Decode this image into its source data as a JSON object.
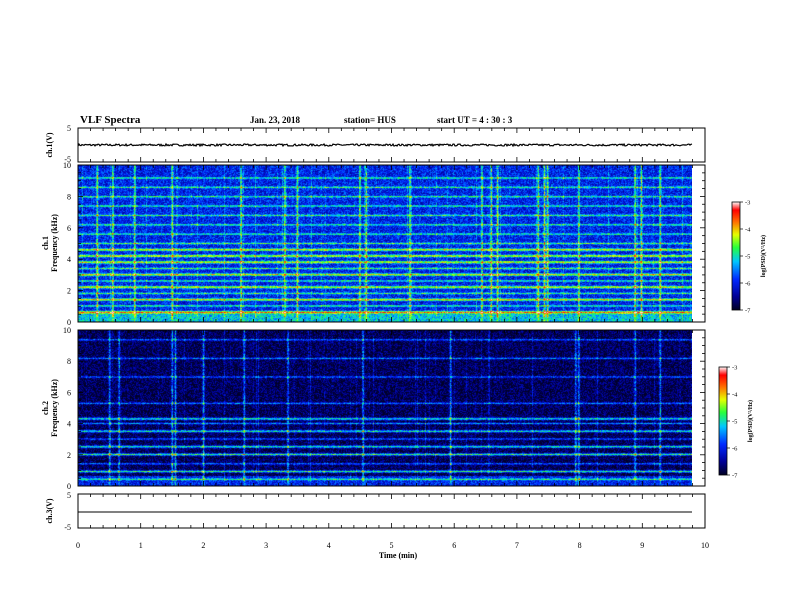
{
  "header": {
    "title": "VLF Spectra",
    "date": "Jan. 23, 2018",
    "station": "station= HUS",
    "start": "start  UT =   4 : 30 : 3"
  },
  "colors": {
    "background": "#ffffff",
    "axis": "#000000",
    "trace": "#000000",
    "colormap": [
      "#000033",
      "#0000aa",
      "#0033ff",
      "#00ccff",
      "#33ff33",
      "#ffff00",
      "#ff6600",
      "#ff0000",
      "#ffffff"
    ]
  },
  "chart_data": [
    {
      "type": "line",
      "panel": "ch1-waveform",
      "ylabel": "ch.1(V)",
      "ylim": [
        -5,
        5
      ],
      "y_ticks": [
        "5",
        "-5"
      ],
      "xlim": [
        0,
        10
      ],
      "series": [
        {
          "values_description_free": true,
          "level": 0.0,
          "noise_amplitude": 0.3
        }
      ]
    },
    {
      "type": "heatmap",
      "panel": "ch1-spectrogram",
      "ylabel_top": "ch.1",
      "ylabel": "Frequency (kHz)",
      "ylim": [
        0,
        10
      ],
      "y_ticks": [
        "0",
        "2",
        "4",
        "6",
        "8",
        "10"
      ],
      "xlim": [
        0,
        10
      ],
      "data_end_min": 9.8,
      "background_level": -6.0,
      "tone_bands_khz": [
        0.6,
        1.0,
        1.4,
        1.8,
        2.2,
        2.6,
        3.0,
        3.4,
        3.8,
        4.2,
        4.6,
        5.0,
        5.6,
        6.2,
        6.8,
        7.4,
        8.0,
        8.6,
        9.2
      ],
      "strong_bands_khz": [
        0.6,
        1.4,
        2.2,
        3.0,
        3.8,
        4.2,
        4.6
      ],
      "impulse_times_min": [
        0.3,
        0.55,
        0.9,
        1.5,
        2.6,
        3.3,
        3.5,
        4.5,
        4.6,
        5.3,
        6.45,
        6.6,
        6.7,
        7.35,
        7.45,
        7.5,
        8.0,
        8.9,
        9.0,
        9.3
      ],
      "colorbar": {
        "label": "log(PSD)(V²/Hz)",
        "ticks": [
          "-3",
          "-4",
          "-5",
          "-6",
          "-7"
        ],
        "range": [
          -7,
          -3
        ]
      }
    },
    {
      "type": "heatmap",
      "panel": "ch2-spectrogram",
      "ylabel_top": "ch.2",
      "ylabel": "Frequency (kHz)",
      "ylim": [
        0,
        10
      ],
      "y_ticks": [
        "0",
        "2",
        "4",
        "6",
        "8",
        "10"
      ],
      "xlim": [
        0,
        10
      ],
      "data_end_min": 9.8,
      "background_level": -6.8,
      "tone_bands_khz": [
        0.4,
        0.9,
        1.4,
        2.0,
        2.5,
        3.0,
        3.5,
        4.0,
        4.3,
        5.3,
        7.0,
        8.2,
        9.4
      ],
      "strong_bands_khz": [
        4.3,
        3.5,
        2.5,
        2.0,
        0.9
      ],
      "impulse_times_min": [
        0.5,
        0.65,
        1.5,
        1.55,
        2.0,
        2.65,
        3.35,
        4.55,
        5.95,
        7.95,
        8.0,
        8.9,
        9.3
      ],
      "colorbar": {
        "label": "log(PSD)(V²/Hz)",
        "ticks": [
          "-3",
          "-4",
          "-5",
          "-6",
          "-7"
        ],
        "range": [
          -7,
          -3
        ]
      }
    },
    {
      "type": "line",
      "panel": "ch3-waveform",
      "ylabel": "ch.3(V)",
      "ylim": [
        -5,
        5
      ],
      "y_ticks": [
        "5",
        "-5"
      ],
      "xlim": [
        0,
        10
      ],
      "series": [
        {
          "level": 0.0,
          "noise_amplitude": 0.0
        }
      ]
    }
  ],
  "xaxis": {
    "label": "Time (min)",
    "ticks": [
      "0",
      "1",
      "2",
      "3",
      "4",
      "5",
      "6",
      "7",
      "8",
      "9",
      "10"
    ]
  }
}
